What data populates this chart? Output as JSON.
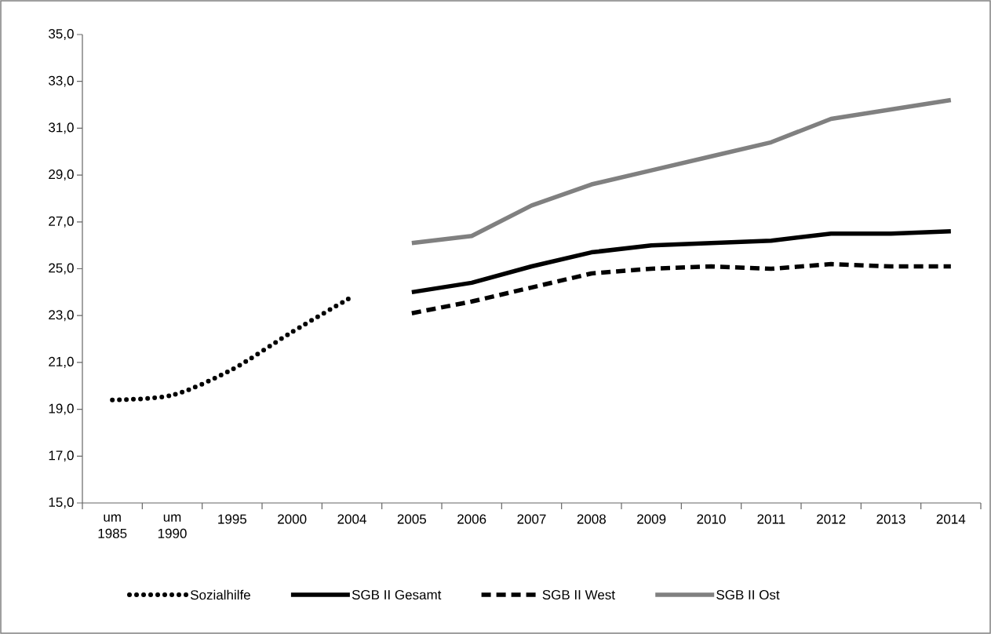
{
  "chart_data": {
    "type": "line",
    "categories": [
      "um 1985",
      "um 1990",
      "1995",
      "2000",
      "2004",
      "2005",
      "2006",
      "2007",
      "2008",
      "2009",
      "2010",
      "2011",
      "2012",
      "2013",
      "2014"
    ],
    "series": [
      {
        "name": "Sozialhilfe",
        "color": "#000000",
        "line_style": "dotted",
        "values": [
          19.4,
          19.6,
          20.7,
          22.3,
          23.8,
          null,
          null,
          null,
          null,
          null,
          null,
          null,
          null,
          null,
          null
        ]
      },
      {
        "name": "SGB II Gesamt",
        "color": "#000000",
        "line_style": "solid",
        "values": [
          null,
          null,
          null,
          null,
          null,
          24.0,
          24.4,
          25.1,
          25.7,
          26.0,
          26.1,
          26.2,
          26.5,
          26.5,
          26.6
        ]
      },
      {
        "name": "SGB II West",
        "color": "#000000",
        "line_style": "dashed",
        "values": [
          null,
          null,
          null,
          null,
          null,
          23.1,
          23.6,
          24.2,
          24.8,
          25.0,
          25.1,
          25.0,
          25.2,
          25.1,
          25.1
        ]
      },
      {
        "name": "SGB II Ost",
        "color": "#808080",
        "line_style": "solid",
        "values": [
          null,
          null,
          null,
          null,
          null,
          26.1,
          26.4,
          27.7,
          28.6,
          29.2,
          29.8,
          30.4,
          31.4,
          31.8,
          32.2
        ]
      }
    ],
    "ylim": [
      15,
      35
    ],
    "yticks": [
      {
        "value": 15,
        "label": "15,0"
      },
      {
        "value": 17,
        "label": "17,0"
      },
      {
        "value": 19,
        "label": "19,0"
      },
      {
        "value": 21,
        "label": "21,0"
      },
      {
        "value": 23,
        "label": "23,0"
      },
      {
        "value": 25,
        "label": "25,0"
      },
      {
        "value": 27,
        "label": "27,0"
      },
      {
        "value": 29,
        "label": "29,0"
      },
      {
        "value": 31,
        "label": "31,0"
      },
      {
        "value": 33,
        "label": "33,0"
      },
      {
        "value": 35,
        "label": "35,0"
      }
    ],
    "grid": false,
    "legend": "bottom",
    "marker": "none"
  }
}
